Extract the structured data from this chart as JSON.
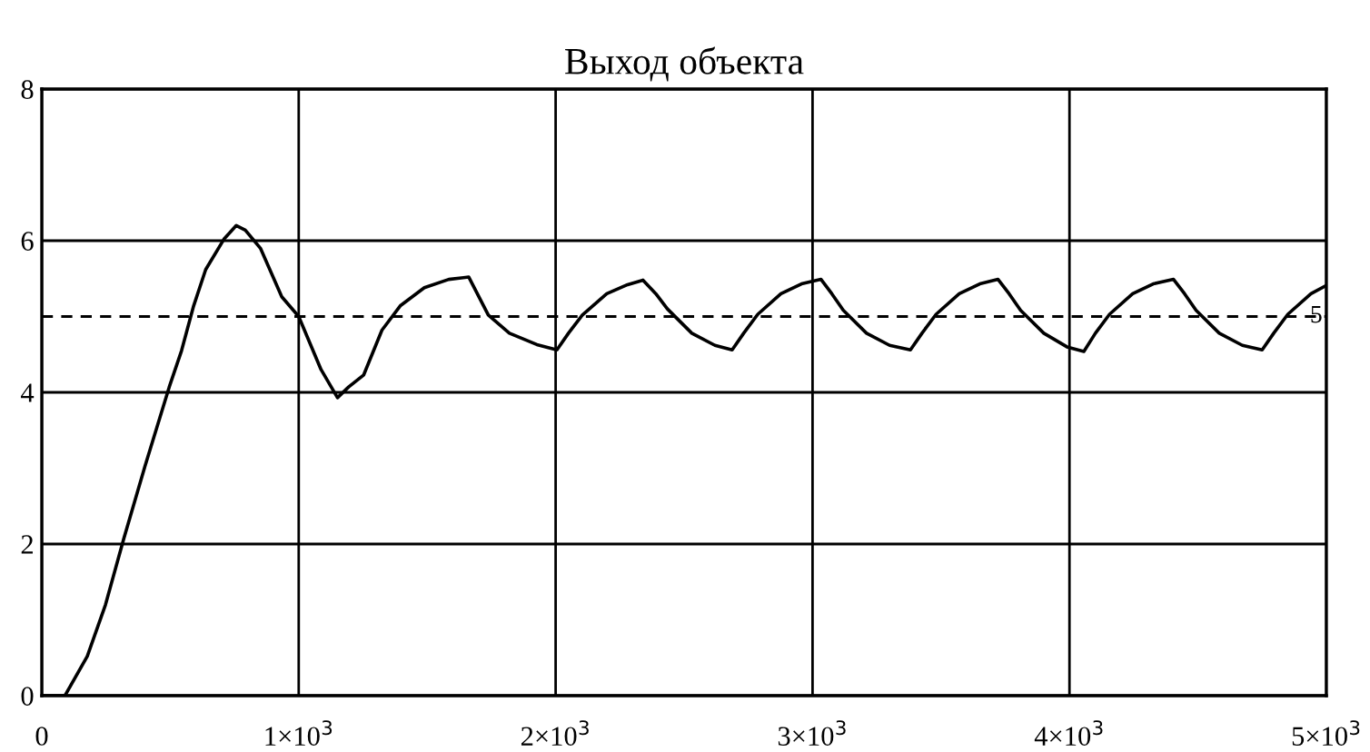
{
  "chart_data": {
    "type": "line",
    "title": "Выход объекта",
    "series": [
      {
        "color": "#000000",
        "line_style": "solid",
        "x": [
          0,
          90,
          177,
          248,
          319,
          402,
          496,
          544,
          591,
          638,
          709,
          757,
          792,
          851,
          934,
          1000,
          1087,
          1151,
          1194,
          1253,
          1324,
          1395,
          1489,
          1584,
          1662,
          1738,
          1820,
          1927,
          2005,
          2050,
          2104,
          2199,
          2280,
          2340,
          2390,
          2435,
          2530,
          2620,
          2687,
          2732,
          2787,
          2877,
          2957,
          3033,
          3075,
          3120,
          3210,
          3300,
          3381,
          3426,
          3481,
          3571,
          3651,
          3722,
          3765,
          3810,
          3900,
          3990,
          4056,
          4101,
          4156,
          4246,
          4326,
          4405,
          4448,
          4493,
          4583,
          4673,
          4750,
          4795,
          4850,
          4940,
          5000
        ],
        "values": [
          0,
          0,
          0.52,
          1.2,
          2.07,
          3.03,
          4.07,
          4.55,
          5.14,
          5.62,
          6.02,
          6.2,
          6.14,
          5.9,
          5.26,
          5.0,
          4.3,
          3.93,
          4.07,
          4.23,
          4.82,
          5.14,
          5.38,
          5.49,
          5.52,
          5.02,
          4.78,
          4.63,
          4.56,
          4.78,
          5.02,
          5.3,
          5.42,
          5.48,
          5.3,
          5.1,
          4.78,
          4.62,
          4.56,
          4.78,
          5.03,
          5.3,
          5.43,
          5.49,
          5.3,
          5.08,
          4.78,
          4.62,
          4.56,
          4.78,
          5.03,
          5.3,
          5.43,
          5.49,
          5.3,
          5.08,
          4.78,
          4.6,
          4.54,
          4.78,
          5.03,
          5.3,
          5.43,
          5.49,
          5.3,
          5.08,
          4.78,
          4.62,
          4.56,
          4.78,
          5.03,
          5.3,
          5.41
        ]
      }
    ],
    "xlim": [
      0,
      5000
    ],
    "ylim": [
      0,
      8
    ],
    "xticks": [
      0,
      {
        "value": 1000,
        "label": "1×10$^{3}$"
      },
      {
        "value": 2000,
        "label": "2×10$^{3}$"
      },
      {
        "value": 3000,
        "label": "3×10$^{3}$"
      },
      {
        "value": 4000,
        "label": "4×10$^{3}$"
      },
      {
        "value": 5000,
        "label": "5×10$^{3}$"
      }
    ],
    "yticks": [
      0,
      2,
      4,
      6,
      8
    ],
    "grid": true,
    "ref_lines": [
      {
        "axis": "y",
        "value": 5,
        "label": "5",
        "color": "#000000",
        "line_style": "dashed"
      }
    ]
  }
}
